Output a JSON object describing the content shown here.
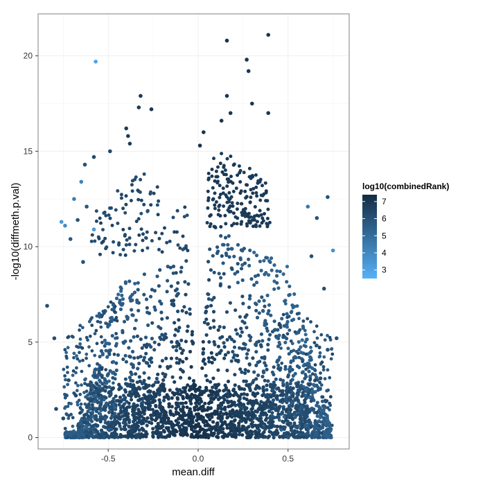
{
  "chart_data": {
    "type": "scatter",
    "title": "",
    "xlabel": "mean.diff",
    "ylabel": "-log10(diffmeth.p.val)",
    "xlim": [
      -0.89,
      0.84
    ],
    "ylim": [
      -0.6,
      22.2
    ],
    "xticks": [
      -0.5,
      0.0,
      0.5
    ],
    "xtick_labels": [
      "-0.5",
      "0.0",
      "0.5"
    ],
    "yticks": [
      0,
      5,
      10,
      15,
      20
    ],
    "ytick_labels": [
      "0",
      "5",
      "10",
      "15",
      "20"
    ],
    "grid": true,
    "legend": {
      "title": "log10(combinedRank)",
      "placement": "right",
      "range": [
        2.5,
        7.4
      ],
      "ticks": [
        3,
        4,
        5,
        6,
        7
      ],
      "tick_labels": [
        "3",
        "4",
        "5",
        "6",
        "7"
      ],
      "color_low": "#56B1F7",
      "color_high": "#132B43"
    },
    "colors": {
      "low": "#56B1F7",
      "high": "#132B43",
      "panel_border": "#7f7f7f",
      "grid": "#ebebeb"
    },
    "outlier_points": [
      {
        "x": 0.39,
        "y": 21.1,
        "c": 7.0
      },
      {
        "x": 0.16,
        "y": 20.8,
        "c": 7.1
      },
      {
        "x": 0.27,
        "y": 19.8,
        "c": 7.0
      },
      {
        "x": 0.28,
        "y": 19.2,
        "c": 6.9
      },
      {
        "x": -0.57,
        "y": 19.7,
        "c": 3.0
      },
      {
        "x": -0.32,
        "y": 17.9,
        "c": 6.9
      },
      {
        "x": 0.16,
        "y": 17.9,
        "c": 7.0
      },
      {
        "x": -0.33,
        "y": 17.3,
        "c": 6.8
      },
      {
        "x": -0.26,
        "y": 17.2,
        "c": 7.0
      },
      {
        "x": 0.3,
        "y": 17.5,
        "c": 7.0
      },
      {
        "x": 0.39,
        "y": 17.0,
        "c": 7.0
      },
      {
        "x": 0.18,
        "y": 17.0,
        "c": 7.0
      },
      {
        "x": 0.13,
        "y": 16.6,
        "c": 7.0
      },
      {
        "x": -0.4,
        "y": 16.2,
        "c": 6.8
      },
      {
        "x": -0.39,
        "y": 15.8,
        "c": 6.8
      },
      {
        "x": -0.38,
        "y": 15.4,
        "c": 6.7
      },
      {
        "x": 0.03,
        "y": 16.0,
        "c": 7.1
      },
      {
        "x": 0.01,
        "y": 15.3,
        "c": 7.1
      },
      {
        "x": -0.49,
        "y": 15.0,
        "c": 6.4
      },
      {
        "x": -0.58,
        "y": 14.7,
        "c": 6.2
      },
      {
        "x": -0.63,
        "y": 14.3,
        "c": 6.0
      },
      {
        "x": -0.65,
        "y": 13.4,
        "c": 4.2
      },
      {
        "x": -0.69,
        "y": 12.5,
        "c": 4.4
      },
      {
        "x": -0.62,
        "y": 12.1,
        "c": 5.8
      },
      {
        "x": -0.67,
        "y": 11.4,
        "c": 5.9
      },
      {
        "x": -0.76,
        "y": 11.3,
        "c": 3.5
      },
      {
        "x": -0.74,
        "y": 11.1,
        "c": 3.8
      },
      {
        "x": -0.58,
        "y": 10.9,
        "c": 3.4
      },
      {
        "x": -0.71,
        "y": 10.4,
        "c": 5.8
      },
      {
        "x": 0.72,
        "y": 12.6,
        "c": 5.9
      },
      {
        "x": 0.61,
        "y": 12.1,
        "c": 4.6
      },
      {
        "x": 0.66,
        "y": 11.5,
        "c": 5.9
      },
      {
        "x": 0.75,
        "y": 9.8,
        "c": 3.7
      },
      {
        "x": 0.7,
        "y": 7.8,
        "c": 6.0
      },
      {
        "x": -0.84,
        "y": 6.9,
        "c": 6.1
      },
      {
        "x": -0.8,
        "y": 5.2,
        "c": 6.2
      },
      {
        "x": 0.77,
        "y": 5.2,
        "c": 6.1
      },
      {
        "x": 0.72,
        "y": 4.6,
        "c": 6.1
      },
      {
        "x": -0.79,
        "y": 1.5,
        "c": 6.3
      },
      {
        "x": 0.71,
        "y": 1.9,
        "c": 6.3
      },
      {
        "x": -0.75,
        "y": 1.0,
        "c": 6.3
      },
      {
        "x": 0.66,
        "y": 1.3,
        "c": 6.4
      },
      {
        "x": -0.72,
        "y": 3.0,
        "c": 6.2
      },
      {
        "x": -0.68,
        "y": 2.2,
        "c": 6.3
      },
      {
        "x": 0.68,
        "y": 3.1,
        "c": 6.2
      },
      {
        "x": -0.64,
        "y": 9.2,
        "c": 6.0
      },
      {
        "x": 0.63,
        "y": 9.5,
        "c": 6.0
      }
    ]
  }
}
